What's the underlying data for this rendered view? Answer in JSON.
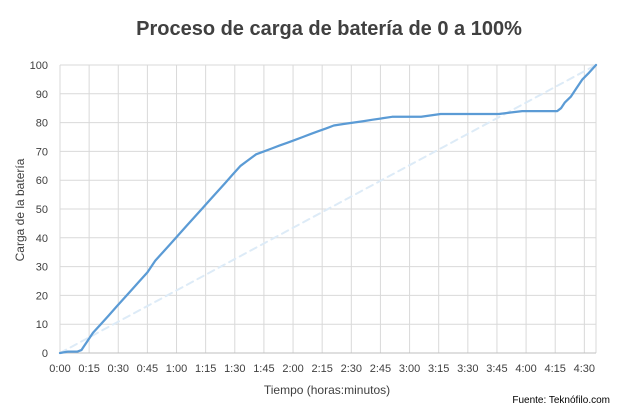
{
  "chart_data": {
    "type": "line",
    "title": "Proceso de carga de batería de 0 a 100%",
    "xlabel": "Tiempo (horas:minutos)",
    "ylabel": "Carga de la batería",
    "source": "Fuente: Teknófilo.com",
    "x_ticks": [
      "0:00",
      "0:15",
      "0:30",
      "0:45",
      "1:00",
      "1:15",
      "1:30",
      "1:45",
      "2:00",
      "2:15",
      "2:30",
      "2:45",
      "3:00",
      "3:15",
      "3:30",
      "3:45",
      "4:00",
      "4:15",
      "4:30"
    ],
    "y_ticks": [
      0,
      10,
      20,
      30,
      40,
      50,
      60,
      70,
      80,
      90,
      100
    ],
    "xlim": [
      0,
      276
    ],
    "ylim": [
      0,
      100
    ],
    "x_unit": "minutes",
    "grid": true,
    "legend": "none",
    "series": [
      {
        "color": "#5B9BD5",
        "style": "solid",
        "x": [
          0,
          4,
          9,
          11,
          12,
          15,
          17,
          21,
          25,
          29,
          33,
          37,
          41,
          45,
          49,
          53,
          57,
          61,
          65,
          69,
          73,
          77,
          81,
          85,
          89,
          93,
          97,
          101,
          105,
          109,
          113,
          117,
          121,
          125,
          129,
          133,
          137,
          141,
          146,
          151,
          156,
          161,
          166,
          171,
          176,
          181,
          186,
          191,
          196,
          202,
          208,
          214,
          220,
          226,
          232,
          238,
          244,
          250,
          256,
          258,
          260,
          263,
          266,
          269,
          272,
          276
        ],
        "y": [
          0,
          0.5,
          0.5,
          1,
          2,
          5,
          7,
          10,
          13,
          16,
          19,
          22,
          25,
          28,
          32,
          35,
          38,
          41,
          44,
          47,
          50,
          53,
          56,
          59,
          62,
          65,
          67,
          69,
          70,
          71,
          72,
          73,
          74,
          75,
          76,
          77,
          78,
          79,
          79.5,
          80,
          80.5,
          81,
          81.5,
          82,
          82,
          82,
          82,
          82.5,
          83,
          83,
          83,
          83,
          83,
          83,
          83.5,
          84,
          84,
          84,
          84,
          85,
          87,
          89,
          92,
          95,
          97,
          100
        ]
      },
      {
        "color": "#DDEBF7",
        "style": "dashed",
        "x": [
          0,
          276
        ],
        "y": [
          0,
          100
        ]
      }
    ]
  },
  "colors": {
    "title": "#404040",
    "ticks": "#404040",
    "grid": "#D9D9D9",
    "axis": "#BFBFBF"
  }
}
